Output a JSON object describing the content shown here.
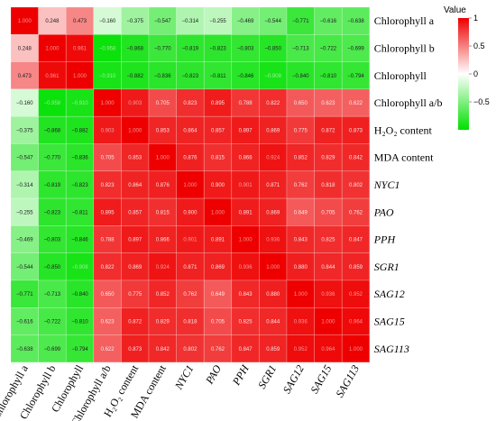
{
  "chart_data": {
    "type": "heatmap",
    "labels": [
      {
        "text": "Chlorophyll a",
        "italic": false
      },
      {
        "text": "Chlorophyll b",
        "italic": false
      },
      {
        "text": "Chlorophyll",
        "italic": false
      },
      {
        "text": "Chlorophyll a/b",
        "italic": false
      },
      {
        "text": "H₂O₂ content",
        "italic": false
      },
      {
        "text": "MDA content",
        "italic": false
      },
      {
        "text": "NYC1",
        "italic": true
      },
      {
        "text": "PAO",
        "italic": true
      },
      {
        "text": "PPH",
        "italic": true
      },
      {
        "text": "SGR1",
        "italic": true
      },
      {
        "text": "SAG12",
        "italic": true
      },
      {
        "text": "SAG15",
        "italic": true
      },
      {
        "text": "SAG113",
        "italic": true
      }
    ],
    "matrix": [
      [
        1.0,
        0.248,
        0.473,
        -0.16,
        -0.375,
        -0.547,
        -0.314,
        -0.255,
        -0.469,
        -0.544,
        -0.771,
        -0.616,
        -0.638
      ],
      [
        0.248,
        1.0,
        0.961,
        -0.958,
        -0.868,
        -0.77,
        -0.819,
        -0.823,
        -0.803,
        -0.85,
        -0.713,
        -0.722,
        -0.699
      ],
      [
        0.473,
        0.961,
        1.0,
        -0.91,
        -0.882,
        -0.836,
        -0.823,
        -0.811,
        -0.846,
        -0.908,
        -0.84,
        -0.81,
        -0.794
      ],
      [
        -0.16,
        -0.958,
        -0.91,
        1.0,
        0.903,
        0.705,
        0.823,
        0.895,
        0.788,
        0.822,
        0.65,
        0.623,
        0.622
      ],
      [
        -0.375,
        -0.868,
        -0.882,
        0.903,
        1.0,
        0.853,
        0.864,
        0.857,
        0.897,
        0.869,
        0.775,
        0.872,
        0.873
      ],
      [
        -0.547,
        -0.77,
        -0.836,
        0.705,
        0.853,
        1.0,
        0.876,
        0.815,
        0.866,
        0.924,
        0.852,
        0.829,
        0.842
      ],
      [
        -0.314,
        -0.819,
        -0.823,
        0.823,
        0.864,
        0.876,
        1.0,
        0.9,
        0.901,
        0.871,
        0.762,
        0.818,
        0.802
      ],
      [
        -0.255,
        -0.823,
        -0.811,
        0.895,
        0.857,
        0.815,
        0.9,
        1.0,
        0.891,
        0.869,
        0.649,
        0.705,
        0.762
      ],
      [
        -0.469,
        -0.803,
        -0.846,
        0.788,
        0.897,
        0.866,
        0.901,
        0.891,
        1.0,
        0.936,
        0.843,
        0.825,
        0.847
      ],
      [
        -0.544,
        -0.85,
        -0.908,
        0.822,
        0.869,
        0.924,
        0.871,
        0.869,
        0.936,
        1.0,
        0.88,
        0.844,
        0.859
      ],
      [
        -0.771,
        -0.713,
        -0.84,
        0.65,
        0.775,
        0.852,
        0.762,
        0.649,
        0.843,
        0.88,
        1.0,
        0.936,
        0.952
      ],
      [
        -0.616,
        -0.722,
        -0.81,
        0.623,
        0.872,
        0.829,
        0.818,
        0.705,
        0.825,
        0.844,
        0.936,
        1.0,
        0.964
      ],
      [
        -0.638,
        -0.699,
        -0.794,
        0.622,
        0.873,
        0.842,
        0.802,
        0.762,
        0.847,
        0.859,
        0.952,
        0.964,
        1.0
      ]
    ],
    "value_range": [
      -1,
      1
    ],
    "colorscale": {
      "low": "#00e000",
      "mid": "#ffffff",
      "high": "#ee0000"
    },
    "legend": {
      "title": "Value",
      "ticks": [
        {
          "value": 1,
          "label": "1"
        },
        {
          "value": 0.5,
          "label": "0.5"
        },
        {
          "value": 0,
          "label": "0"
        },
        {
          "value": -0.5,
          "label": "-0.5"
        }
      ],
      "placement": "top-right"
    }
  }
}
